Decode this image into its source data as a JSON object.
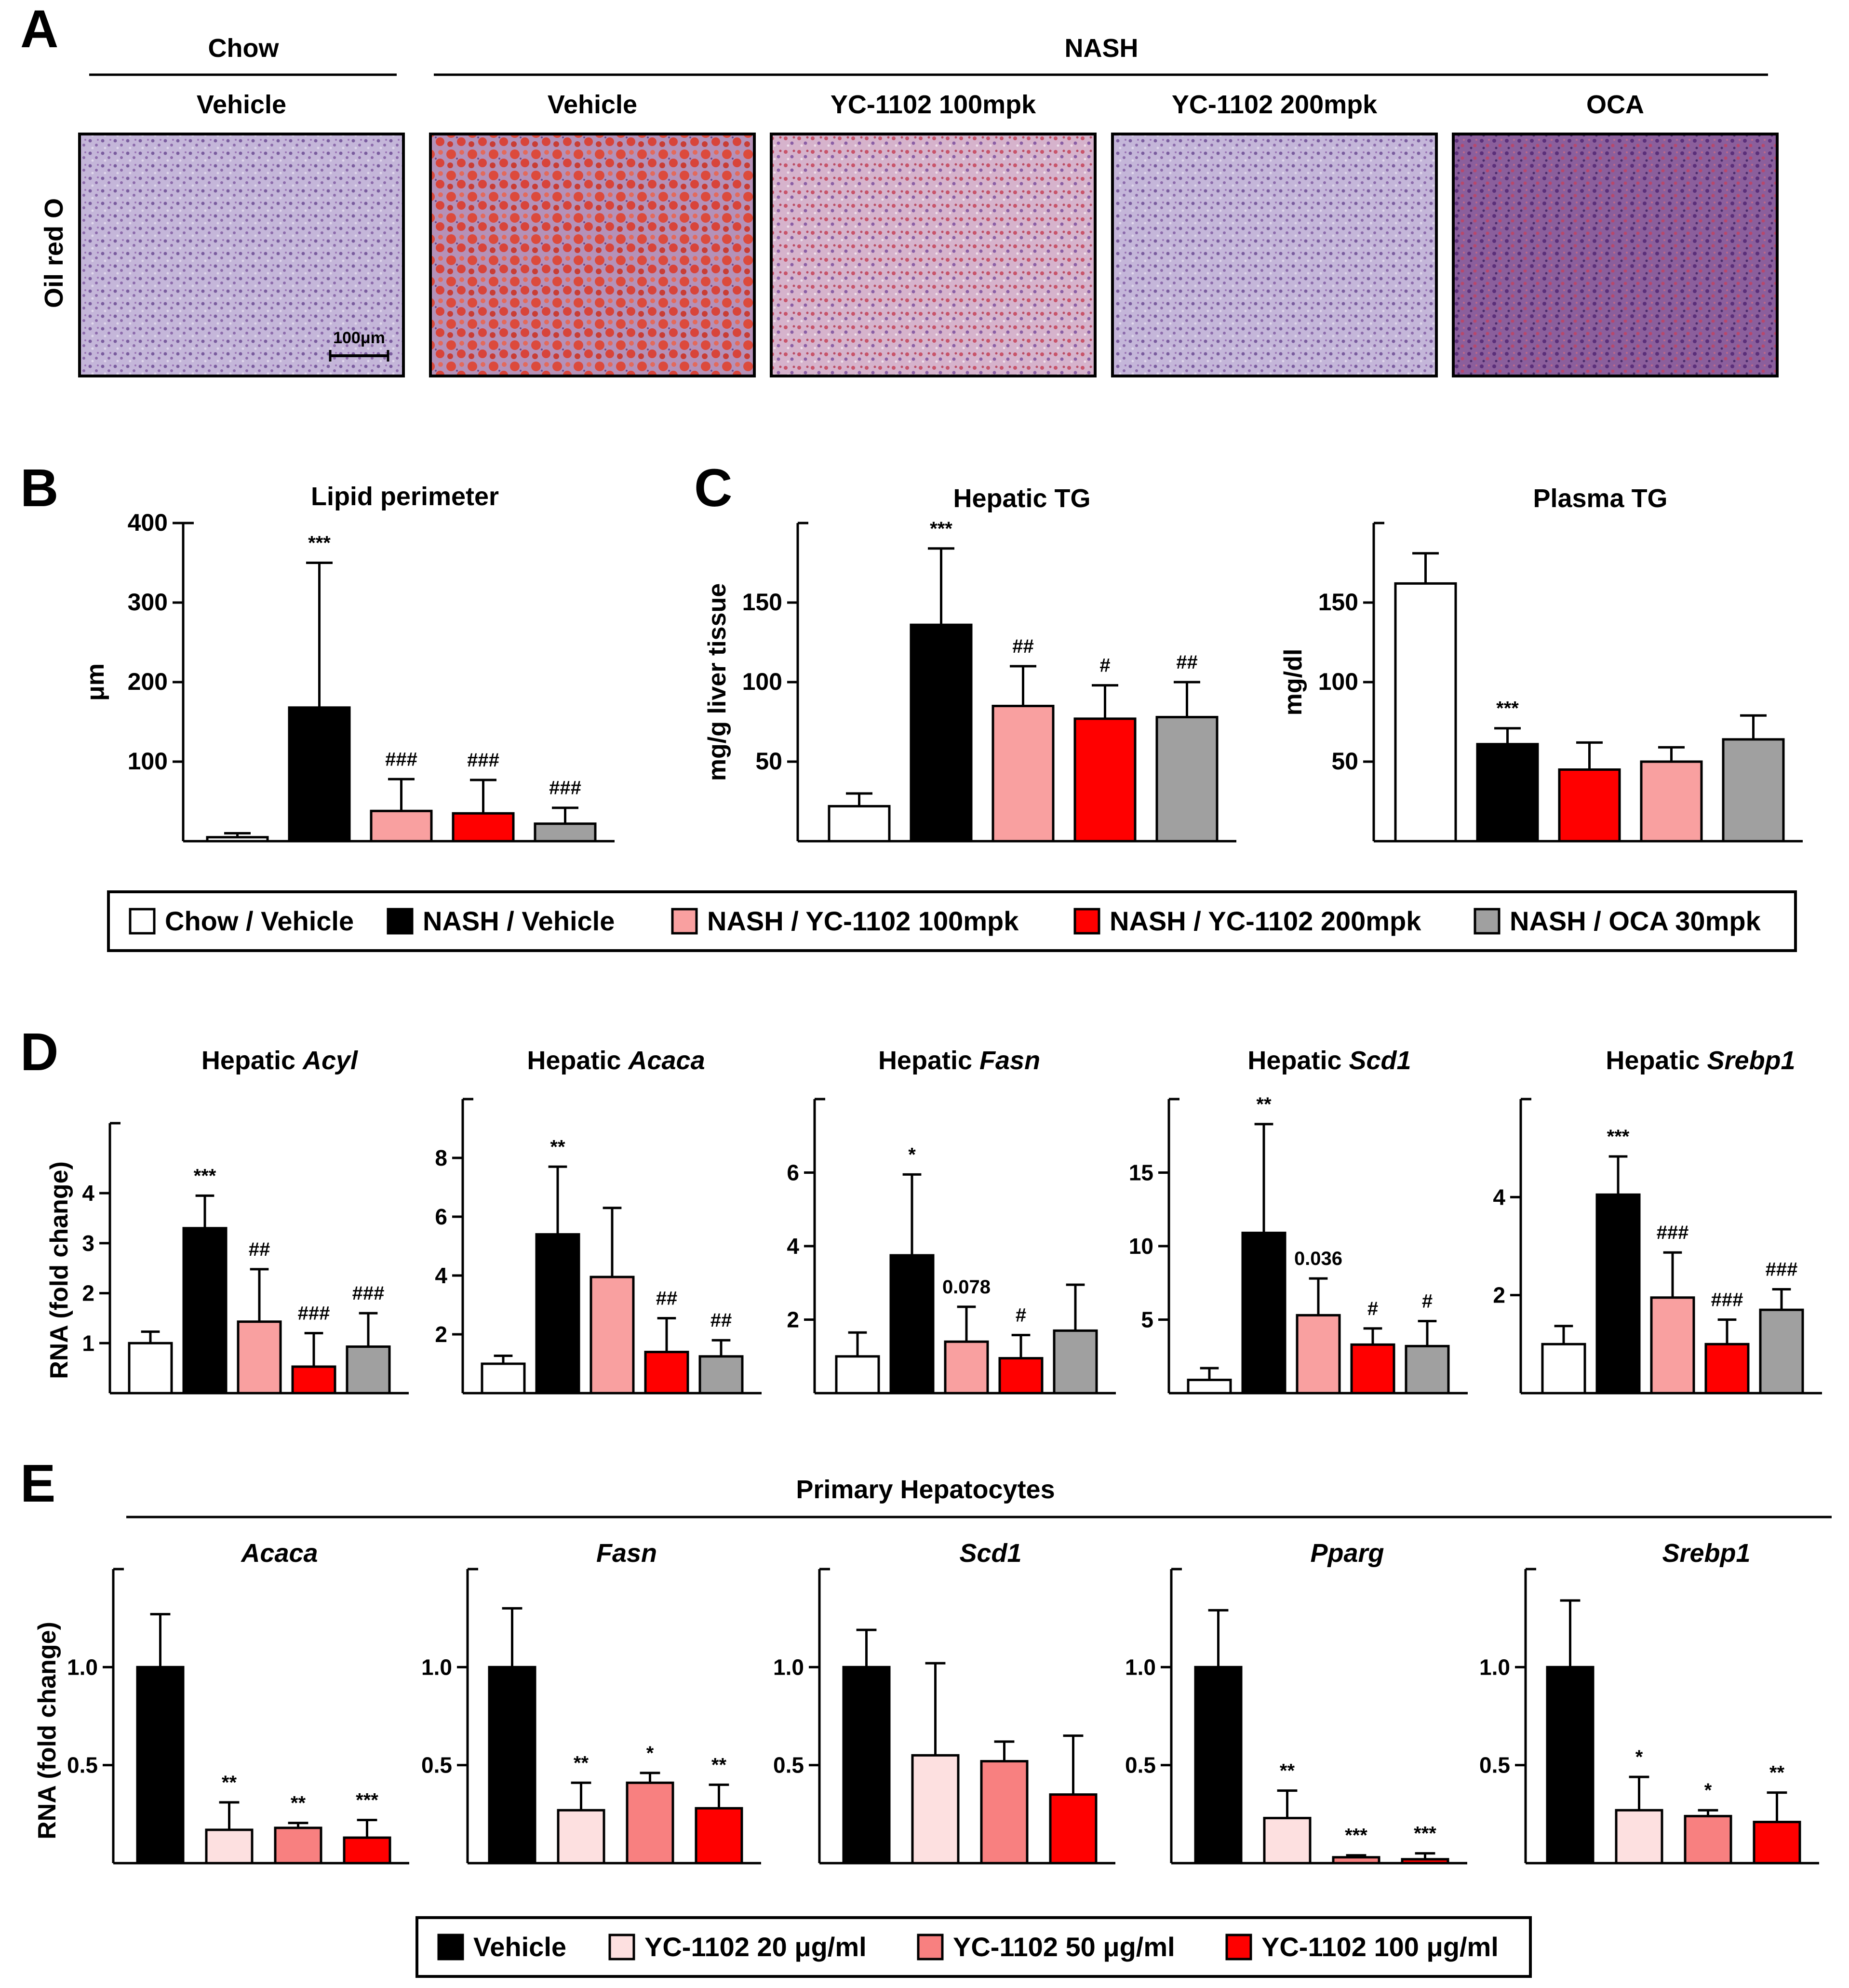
{
  "colors": {
    "chow_vehicle": "#ffffff",
    "nash_vehicle": "#000000",
    "yc_100": "#f9a0a0",
    "yc_200": "#ff0000",
    "oca": "#a0a0a0",
    "yc_20ug": "#fde0e0",
    "yc_50ug": "#f88080",
    "yc_100ug": "#ff0000",
    "tissue_normal": "#b5a2cd",
    "tissue_steatotic": "#d9483c"
  },
  "panel_a": {
    "label": "A",
    "group_chow": "Chow",
    "group_nash": "NASH",
    "row_label": "Oil red O",
    "scale_bar": "100μm",
    "images": [
      {
        "title": "Vehicle",
        "tone": "normal"
      },
      {
        "title": "Vehicle",
        "tone": "steatotic"
      },
      {
        "title": "YC-1102 100mpk",
        "tone": "mild"
      },
      {
        "title": "YC-1102 200mpk",
        "tone": "normal"
      },
      {
        "title": "OCA",
        "tone": "dark"
      }
    ]
  },
  "legend_bc": [
    {
      "label": "Chow / Vehicle",
      "color": "#ffffff"
    },
    {
      "label": "NASH / Vehicle",
      "color": "#000000"
    },
    {
      "label": "NASH / YC-1102 100mpk",
      "color": "#f9a0a0"
    },
    {
      "label": "NASH / YC-1102 200mpk",
      "color": "#ff0000"
    },
    {
      "label": "NASH / OCA 30mpk",
      "color": "#a0a0a0"
    }
  ],
  "legend_e": [
    {
      "label": "Vehicle",
      "color": "#000000"
    },
    {
      "label": "YC-1102  20 μg/ml",
      "color": "#fde0e0"
    },
    {
      "label": "YC-1102 50 μg/ml",
      "color": "#f88080"
    },
    {
      "label": "YC-1102 100 μg/ml",
      "color": "#ff0000"
    }
  ],
  "panel_d_ylabel": "RNA (fold change)",
  "panel_e_ylabel": "RNA (fold change)",
  "panel_e_group": "Primary Hepatocytes",
  "chart_data": [
    {
      "panel": "B",
      "type": "bar",
      "title": "Lipid perimeter",
      "ylabel": "μm",
      "categories": [
        "Chow / Vehicle",
        "NASH / Vehicle",
        "NASH / YC-1102 100mpk",
        "NASH / YC-1102 200mpk",
        "NASH / OCA 30mpk"
      ],
      "values": [
        5,
        168,
        38,
        35,
        22
      ],
      "errors": [
        5,
        182,
        40,
        42,
        20
      ],
      "annotations": [
        "",
        "***",
        "###",
        "###",
        "###"
      ],
      "yticks": [
        100,
        200,
        300,
        400
      ],
      "ylim": [
        0,
        400
      ]
    },
    {
      "panel": "C",
      "type": "bar",
      "title": "Hepatic TG",
      "ylabel": "mg/g liver tissue",
      "categories": [
        "Chow / Vehicle",
        "NASH / Vehicle",
        "NASH / YC-1102 100mpk",
        "NASH / YC-1102 200mpk",
        "NASH / OCA 30mpk"
      ],
      "values": [
        22,
        136,
        85,
        77,
        78
      ],
      "errors": [
        8,
        48,
        25,
        21,
        22
      ],
      "annotations": [
        "",
        "***",
        "##",
        "#",
        "##"
      ],
      "yticks": [
        50,
        100,
        150
      ],
      "ylim": [
        0,
        200
      ]
    },
    {
      "panel": "C",
      "type": "bar",
      "title": "Plasma TG",
      "ylabel": "mg/dl",
      "categories": [
        "Chow / Vehicle",
        "NASH / Vehicle",
        "NASH / YC-1102 200mpk",
        "NASH / YC-1102 100mpk",
        "NASH / OCA 30mpk"
      ],
      "values": [
        162,
        61,
        45,
        50,
        64
      ],
      "errors": [
        19,
        10,
        17,
        9,
        15
      ],
      "annotations": [
        "",
        "***",
        "",
        "",
        ""
      ],
      "yticks": [
        50,
        100,
        150
      ],
      "ylim": [
        0,
        200
      ]
    },
    {
      "panel": "D",
      "type": "bar",
      "title_prefix": "Hepatic ",
      "title_gene": "Acyl",
      "categories": [
        "Chow / Vehicle",
        "NASH / Vehicle",
        "NASH / YC-1102 100mpk",
        "NASH / YC-1102 200mpk",
        "NASH / OCA 30mpk"
      ],
      "values": [
        1.0,
        3.3,
        1.43,
        0.53,
        0.93
      ],
      "errors": [
        0.23,
        0.65,
        1.05,
        0.67,
        0.67
      ],
      "annotations": [
        "",
        "***",
        "##",
        "###",
        "###"
      ],
      "yticks": [
        1,
        2,
        3,
        4
      ],
      "ylim": [
        0,
        5.4
      ]
    },
    {
      "panel": "D",
      "type": "bar",
      "title_prefix": "Hepatic ",
      "title_gene": "Acaca",
      "categories": [
        "Chow / Vehicle",
        "NASH / Vehicle",
        "NASH / YC-1102 100mpk",
        "NASH / YC-1102 200mpk",
        "NASH / OCA 30mpk"
      ],
      "values": [
        1.0,
        5.4,
        3.95,
        1.4,
        1.25
      ],
      "errors": [
        0.27,
        2.3,
        2.35,
        1.15,
        0.55
      ],
      "annotations": [
        "",
        "**",
        "",
        "##",
        "##"
      ],
      "yticks": [
        2,
        4,
        6,
        8
      ],
      "ylim": [
        0,
        10
      ]
    },
    {
      "panel": "D",
      "type": "bar",
      "title_prefix": "Hepatic ",
      "title_gene": "Fasn",
      "categories": [
        "Chow / Vehicle",
        "NASH / Vehicle",
        "NASH / YC-1102 100mpk",
        "NASH / YC-1102 200mpk",
        "NASH / OCA 30mpk"
      ],
      "values": [
        1.0,
        3.75,
        1.4,
        0.95,
        1.7
      ],
      "errors": [
        0.65,
        2.2,
        0.95,
        0.63,
        1.25
      ],
      "annotations": [
        "",
        "*",
        "0.078",
        "#",
        ""
      ],
      "yticks": [
        2,
        4,
        6
      ],
      "ylim": [
        0,
        8
      ]
    },
    {
      "panel": "D",
      "type": "bar",
      "title_prefix": "Hepatic ",
      "title_gene": "Scd1",
      "categories": [
        "Chow / Vehicle",
        "NASH / Vehicle",
        "NASH / YC-1102 100mpk",
        "NASH / YC-1102 200mpk",
        "NASH / OCA 30mpk"
      ],
      "values": [
        0.9,
        10.9,
        5.3,
        3.3,
        3.2
      ],
      "errors": [
        0.8,
        7.4,
        2.5,
        1.1,
        1.7
      ],
      "annotations": [
        "",
        "**",
        "0.036",
        "#",
        "#"
      ],
      "yticks": [
        5,
        10,
        15
      ],
      "ylim": [
        0,
        20
      ]
    },
    {
      "panel": "D",
      "type": "bar",
      "title_prefix": "Hepatic ",
      "title_gene": "Srebp1",
      "categories": [
        "Chow / Vehicle",
        "NASH / Vehicle",
        "NASH / YC-1102 100mpk",
        "NASH / YC-1102 200mpk",
        "NASH / OCA 30mpk"
      ],
      "values": [
        1.0,
        4.05,
        1.95,
        1.0,
        1.7
      ],
      "errors": [
        0.37,
        0.78,
        0.92,
        0.5,
        0.42
      ],
      "annotations": [
        "",
        "***",
        "###",
        "###",
        "###"
      ],
      "yticks": [
        2,
        4
      ],
      "ylim": [
        0,
        6
      ]
    },
    {
      "panel": "E",
      "type": "bar",
      "title_gene": "Acaca",
      "categories": [
        "Vehicle",
        "YC-1102 20 μg/ml",
        "YC-1102 50 μg/ml",
        "YC-1102 100 μg/ml"
      ],
      "values": [
        1.0,
        0.17,
        0.18,
        0.13
      ],
      "errors": [
        0.27,
        0.14,
        0.025,
        0.09
      ],
      "annotations": [
        "",
        "**",
        "**",
        "***"
      ],
      "yticks": [
        0.5,
        1.0
      ],
      "ylim": [
        0,
        1.5
      ]
    },
    {
      "panel": "E",
      "type": "bar",
      "title_gene": "Fasn",
      "categories": [
        "Vehicle",
        "YC-1102 20 μg/ml",
        "YC-1102 50 μg/ml",
        "YC-1102 100 μg/ml"
      ],
      "values": [
        1.0,
        0.27,
        0.41,
        0.28
      ],
      "errors": [
        0.3,
        0.14,
        0.05,
        0.12
      ],
      "annotations": [
        "",
        "**",
        "*",
        "**"
      ],
      "yticks": [
        0.5,
        1.0
      ],
      "ylim": [
        0,
        1.5
      ]
    },
    {
      "panel": "E",
      "type": "bar",
      "title_gene": "Scd1",
      "categories": [
        "Vehicle",
        "YC-1102 20 μg/ml",
        "YC-1102 50 μg/ml",
        "YC-1102 100 μg/ml"
      ],
      "values": [
        1.0,
        0.55,
        0.52,
        0.35
      ],
      "errors": [
        0.19,
        0.47,
        0.1,
        0.3
      ],
      "annotations": [
        "",
        "",
        "",
        ""
      ],
      "yticks": [
        0.5,
        1.0
      ],
      "ylim": [
        0,
        1.5
      ]
    },
    {
      "panel": "E",
      "type": "bar",
      "title_gene": "Pparg",
      "categories": [
        "Vehicle",
        "YC-1102 20 μg/ml",
        "YC-1102 50 μg/ml",
        "YC-1102 100 μg/ml"
      ],
      "values": [
        1.0,
        0.23,
        0.03,
        0.02
      ],
      "errors": [
        0.29,
        0.14,
        0.01,
        0.03
      ],
      "annotations": [
        "",
        "**",
        "***",
        "***"
      ],
      "yticks": [
        0.5,
        1.0
      ],
      "ylim": [
        0,
        1.5
      ]
    },
    {
      "panel": "E",
      "type": "bar",
      "title_gene": "Srebp1",
      "categories": [
        "Vehicle",
        "YC-1102 20 μg/ml",
        "YC-1102 50 μg/ml",
        "YC-1102 100 μg/ml"
      ],
      "values": [
        1.0,
        0.27,
        0.24,
        0.21
      ],
      "errors": [
        0.34,
        0.17,
        0.03,
        0.15
      ],
      "annotations": [
        "",
        "*",
        "*",
        "**"
      ],
      "yticks": [
        0.5,
        1.0
      ],
      "ylim": [
        0,
        1.5
      ]
    }
  ]
}
